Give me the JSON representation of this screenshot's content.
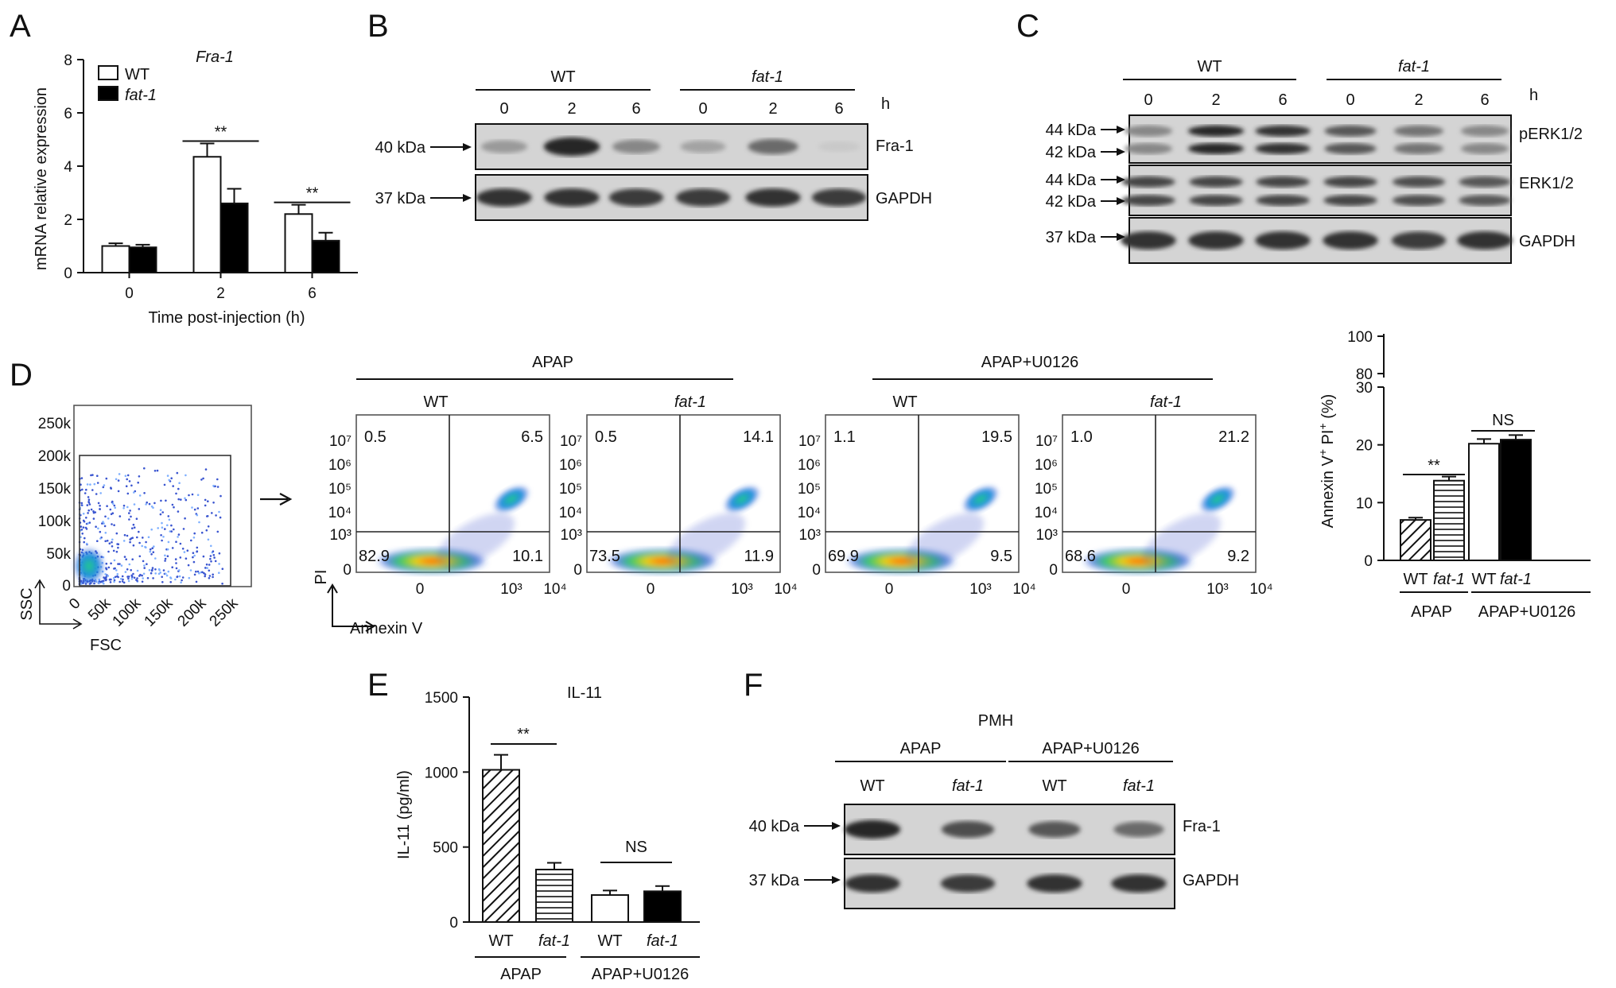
{
  "panels": {
    "A": {
      "letter": "A",
      "chart_data": {
        "type": "bar",
        "title": "Fra-1",
        "xlabel": "Time post-injection (h)",
        "ylabel": "mRNA relative expression",
        "categories": [
          "0",
          "2",
          "6"
        ],
        "ylim": [
          0,
          8
        ],
        "yticks": [
          "0",
          "2",
          "4",
          "6",
          "8"
        ],
        "series": [
          {
            "name": "WT",
            "values": [
              1.0,
              4.35,
              2.2
            ],
            "errors": [
              0.1,
              0.5,
              0.35
            ],
            "color": "#ffffff"
          },
          {
            "name": "fat-1",
            "values": [
              0.95,
              2.6,
              1.2
            ],
            "errors": [
              0.1,
              0.55,
              0.3
            ],
            "color": "#000000"
          }
        ],
        "significance": [
          "",
          "**",
          "**"
        ]
      }
    },
    "B": {
      "letter": "B",
      "groups": [
        "WT",
        "fat-1"
      ],
      "lanes": [
        "0",
        "2",
        "6",
        "0",
        "2",
        "6"
      ],
      "unit": "h",
      "rows": [
        {
          "marker": "40 kDa",
          "protein": "Fra-1",
          "intensities": [
            0.35,
            0.95,
            0.45,
            0.3,
            0.6,
            0.1
          ]
        },
        {
          "marker": "37 kDa",
          "protein": "GAPDH",
          "intensities": [
            0.9,
            0.9,
            0.85,
            0.85,
            0.9,
            0.85
          ]
        }
      ]
    },
    "C": {
      "letter": "C",
      "groups": [
        "WT",
        "fat-1"
      ],
      "lanes": [
        "0",
        "2",
        "6",
        "0",
        "2",
        "6"
      ],
      "unit": "h",
      "rows": [
        {
          "markers": [
            "44 kDa",
            "42 kDa"
          ],
          "protein": "pERK1/2",
          "intensities": [
            0.45,
            0.95,
            0.9,
            0.7,
            0.55,
            0.45
          ]
        },
        {
          "markers": [
            "44 kDa",
            "42 kDa"
          ],
          "protein": "ERK1/2",
          "intensities": [
            0.8,
            0.8,
            0.8,
            0.8,
            0.75,
            0.7
          ]
        },
        {
          "markers": [
            "37 kDa"
          ],
          "protein": "GAPDH",
          "intensities": [
            0.9,
            0.9,
            0.9,
            0.9,
            0.85,
            0.9
          ]
        }
      ]
    },
    "D": {
      "letter": "D",
      "gating": {
        "xlabel": "FSC",
        "ylabel": "SSC",
        "xticks": [
          "0",
          "50k",
          "100k",
          "150k",
          "200k",
          "250k"
        ],
        "yticks": [
          "0",
          "50k",
          "100k",
          "150k",
          "200k",
          "250k"
        ]
      },
      "group_labels": [
        "APAP",
        "APAP+U0126"
      ],
      "xlabel": "Annexin V",
      "ylabel": "PI",
      "xticks": [
        "0",
        "10³",
        "10⁴"
      ],
      "yticks": [
        "0",
        "10³",
        "10⁴",
        "10⁵",
        "10⁶",
        "10⁷"
      ],
      "plots": [
        {
          "group": "WT",
          "quadrants": [
            "0.5",
            "6.5",
            "82.9",
            "10.1"
          ]
        },
        {
          "group": "fat-1",
          "quadrants": [
            "0.5",
            "14.1",
            "73.5",
            "11.9"
          ]
        },
        {
          "group": "WT",
          "quadrants": [
            "1.1",
            "19.5",
            "69.9",
            "9.5"
          ]
        },
        {
          "group": "fat-1",
          "quadrants": [
            "1.0",
            "21.2",
            "68.6",
            "9.2"
          ]
        }
      ],
      "chart_data": {
        "type": "bar",
        "ylabel": "Annexin V+ PI+ (%)",
        "ylabel_parts": [
          "Annexin V",
          "+",
          " PI",
          "+",
          " (%)"
        ],
        "categories": [
          "WT",
          "fat-1",
          "WT",
          "fat-1"
        ],
        "groups": [
          "APAP",
          "APAP+U0126"
        ],
        "values": [
          7.0,
          13.8,
          20.2,
          20.9
        ],
        "errors": [
          0.4,
          0.7,
          0.8,
          0.8
        ],
        "fills": [
          "diagonal",
          "horizontal",
          "white",
          "black"
        ],
        "yticks_lower": [
          "0",
          "10",
          "20",
          "30"
        ],
        "yticks_upper": [
          "80",
          "100"
        ],
        "significance": [
          "**",
          "NS"
        ]
      }
    },
    "E": {
      "letter": "E",
      "chart_data": {
        "type": "bar",
        "title": "IL-11",
        "ylabel": "IL-11 (pg/ml)",
        "categories": [
          "WT",
          "fat-1",
          "WT",
          "fat-1"
        ],
        "groups": [
          "APAP",
          "APAP+U0126"
        ],
        "values": [
          1015,
          350,
          180,
          205
        ],
        "errors": [
          100,
          45,
          30,
          35
        ],
        "fills": [
          "diagonal",
          "horizontal",
          "white",
          "black"
        ],
        "ylim": [
          0,
          1500
        ],
        "yticks": [
          "0",
          "500",
          "1000",
          "1500"
        ],
        "significance": [
          "**",
          "NS"
        ]
      }
    },
    "F": {
      "letter": "F",
      "title": "PMH",
      "groups": [
        "APAP",
        "APAP+U0126"
      ],
      "lanes": [
        "WT",
        "fat-1",
        "WT",
        "fat-1"
      ],
      "rows": [
        {
          "marker": "40 kDa",
          "protein": "Fra-1",
          "intensities": [
            0.95,
            0.75,
            0.7,
            0.6
          ]
        },
        {
          "marker": "37 kDa",
          "protein": "GAPDH",
          "intensities": [
            0.9,
            0.85,
            0.9,
            0.9
          ]
        }
      ]
    }
  }
}
